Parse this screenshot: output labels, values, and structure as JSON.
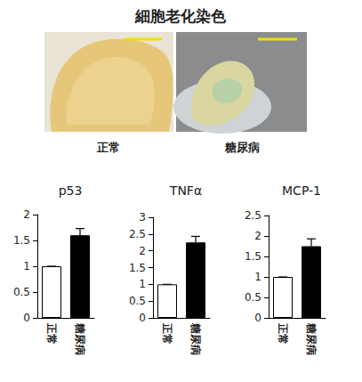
{
  "header": {
    "title": "細胞老化染色"
  },
  "photos": [
    {
      "label": "正常"
    },
    {
      "label": "糖尿病"
    }
  ],
  "chart_data": [
    {
      "type": "bar",
      "title": "p53",
      "categories": [
        "正常",
        "糖尿病"
      ],
      "values": [
        1,
        1.6
      ],
      "errors": [
        0,
        0.13
      ],
      "colors": [
        "#ffffff",
        "#000000"
      ],
      "ylim": [
        0,
        2
      ],
      "yticks": [
        0,
        0.5,
        1,
        1.5,
        2
      ],
      "grid": false
    },
    {
      "type": "bar",
      "title": "TNFα",
      "categories": [
        "正常",
        "糖尿病"
      ],
      "values": [
        1,
        2.25
      ],
      "errors": [
        0,
        0.18
      ],
      "colors": [
        "#ffffff",
        "#000000"
      ],
      "ylim": [
        0,
        3
      ],
      "yticks": [
        0,
        0.5,
        1,
        1.5,
        2,
        2.5,
        3
      ],
      "grid": false
    },
    {
      "type": "bar",
      "title": "MCP-1",
      "categories": [
        "正常",
        "糖尿病"
      ],
      "values": [
        1,
        1.75
      ],
      "errors": [
        0,
        0.18
      ],
      "colors": [
        "#ffffff",
        "#000000"
      ],
      "ylim": [
        0,
        2.5
      ],
      "yticks": [
        0,
        0.5,
        1,
        1.5,
        2,
        2.5
      ],
      "grid": false
    }
  ]
}
